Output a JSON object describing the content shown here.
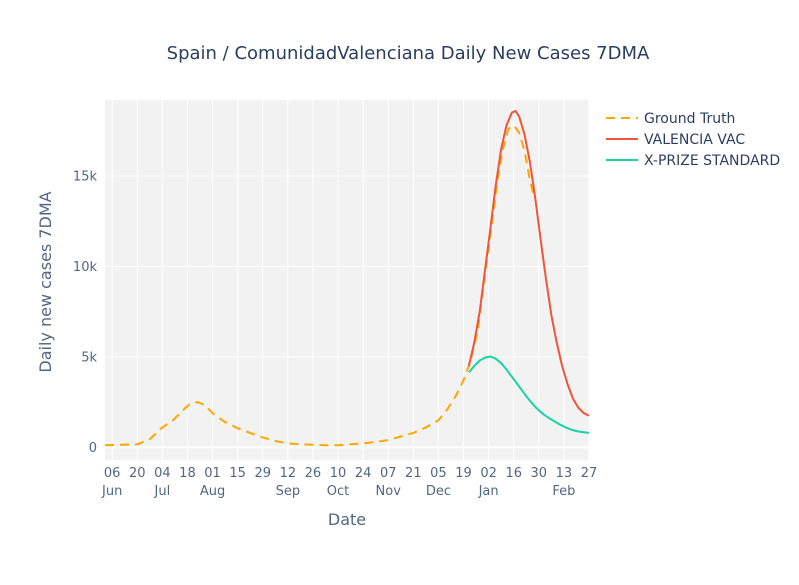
{
  "chart_data": {
    "type": "line",
    "title": "Spain / ComunidadValenciana Daily New Cases 7DMA",
    "xlabel": "Date",
    "ylabel": "Daily new cases 7DMA",
    "x_range": [
      "2020-06-02",
      "2021-02-27"
    ],
    "ylim": [
      -700,
      19200
    ],
    "grid": true,
    "legend_position": "top-right",
    "x_ticks": [
      {
        "date": "2020-06-06",
        "day": "06",
        "month": "Jun"
      },
      {
        "date": "2020-06-20",
        "day": "20",
        "month": ""
      },
      {
        "date": "2020-07-04",
        "day": "04",
        "month": "Jul"
      },
      {
        "date": "2020-07-18",
        "day": "18",
        "month": ""
      },
      {
        "date": "2020-08-01",
        "day": "01",
        "month": "Aug"
      },
      {
        "date": "2020-08-15",
        "day": "15",
        "month": ""
      },
      {
        "date": "2020-08-29",
        "day": "29",
        "month": ""
      },
      {
        "date": "2020-09-12",
        "day": "12",
        "month": "Sep"
      },
      {
        "date": "2020-09-26",
        "day": "26",
        "month": ""
      },
      {
        "date": "2020-10-10",
        "day": "10",
        "month": "Oct"
      },
      {
        "date": "2020-10-24",
        "day": "24",
        "month": ""
      },
      {
        "date": "2020-11-07",
        "day": "07",
        "month": "Nov"
      },
      {
        "date": "2020-11-21",
        "day": "21",
        "month": ""
      },
      {
        "date": "2020-12-05",
        "day": "05",
        "month": "Dec"
      },
      {
        "date": "2020-12-19",
        "day": "19",
        "month": ""
      },
      {
        "date": "2021-01-02",
        "day": "02",
        "month": "Jan"
      },
      {
        "date": "2021-01-16",
        "day": "16",
        "month": ""
      },
      {
        "date": "2021-01-30",
        "day": "30",
        "month": ""
      },
      {
        "date": "2021-02-13",
        "day": "13",
        "month": "Feb"
      },
      {
        "date": "2021-02-27",
        "day": "27",
        "month": ""
      }
    ],
    "y_ticks": [
      {
        "value": 0,
        "label": "0"
      },
      {
        "value": 5000,
        "label": "5k"
      },
      {
        "value": 10000,
        "label": "10k"
      },
      {
        "value": 15000,
        "label": "15k"
      }
    ],
    "series": [
      {
        "name": "Ground Truth",
        "color": "#FFA500",
        "dash": "dashed",
        "points": [
          [
            "2020-06-02",
            120
          ],
          [
            "2020-06-10",
            140
          ],
          [
            "2020-06-20",
            170
          ],
          [
            "2020-06-27",
            450
          ],
          [
            "2020-07-04",
            1100
          ],
          [
            "2020-07-10",
            1500
          ],
          [
            "2020-07-16",
            2100
          ],
          [
            "2020-07-20",
            2450
          ],
          [
            "2020-07-24",
            2500
          ],
          [
            "2020-07-28",
            2300
          ],
          [
            "2020-08-02",
            1800
          ],
          [
            "2020-08-08",
            1400
          ],
          [
            "2020-08-15",
            1050
          ],
          [
            "2020-08-22",
            800
          ],
          [
            "2020-08-29",
            550
          ],
          [
            "2020-09-05",
            350
          ],
          [
            "2020-09-12",
            220
          ],
          [
            "2020-09-20",
            170
          ],
          [
            "2020-09-26",
            140
          ],
          [
            "2020-10-03",
            110
          ],
          [
            "2020-10-10",
            120
          ],
          [
            "2020-10-17",
            170
          ],
          [
            "2020-10-24",
            220
          ],
          [
            "2020-10-31",
            300
          ],
          [
            "2020-11-07",
            400
          ],
          [
            "2020-11-14",
            600
          ],
          [
            "2020-11-21",
            800
          ],
          [
            "2020-11-28",
            1100
          ],
          [
            "2020-12-05",
            1500
          ],
          [
            "2020-12-10",
            2100
          ],
          [
            "2020-12-15",
            2900
          ],
          [
            "2020-12-19",
            3700
          ],
          [
            "2020-12-23",
            4800
          ],
          [
            "2020-12-27",
            6500
          ],
          [
            "2020-12-30",
            8800
          ],
          [
            "2021-01-02",
            11000
          ],
          [
            "2021-01-04",
            12500
          ],
          [
            "2021-01-07",
            14800
          ],
          [
            "2021-01-10",
            16500
          ],
          [
            "2021-01-13",
            17600
          ],
          [
            "2021-01-16",
            17800
          ],
          [
            "2021-01-19",
            17400
          ],
          [
            "2021-01-22",
            16400
          ],
          [
            "2021-01-25",
            14800
          ],
          [
            "2021-01-27",
            14000
          ]
        ]
      },
      {
        "name": "VALENCIA VAC",
        "color": "#EF553B",
        "dash": "solid",
        "points": [
          [
            "2020-12-22",
            4500
          ],
          [
            "2020-12-25",
            5800
          ],
          [
            "2020-12-28",
            7500
          ],
          [
            "2020-12-31",
            9800
          ],
          [
            "2021-01-03",
            12100
          ],
          [
            "2021-01-06",
            14500
          ],
          [
            "2021-01-09",
            16500
          ],
          [
            "2021-01-12",
            17800
          ],
          [
            "2021-01-15",
            18500
          ],
          [
            "2021-01-17",
            18600
          ],
          [
            "2021-01-19",
            18300
          ],
          [
            "2021-01-22",
            17300
          ],
          [
            "2021-01-25",
            15800
          ],
          [
            "2021-01-28",
            13800
          ],
          [
            "2021-01-31",
            11500
          ],
          [
            "2021-02-03",
            9300
          ],
          [
            "2021-02-06",
            7300
          ],
          [
            "2021-02-09",
            5800
          ],
          [
            "2021-02-12",
            4500
          ],
          [
            "2021-02-15",
            3500
          ],
          [
            "2021-02-18",
            2700
          ],
          [
            "2021-02-21",
            2200
          ],
          [
            "2021-02-24",
            1900
          ],
          [
            "2021-02-27",
            1750
          ]
        ]
      },
      {
        "name": "X-PRIZE STANDARD",
        "color": "#19D3A2",
        "dash": "solid",
        "points": [
          [
            "2020-12-22",
            4150
          ],
          [
            "2020-12-25",
            4500
          ],
          [
            "2020-12-28",
            4800
          ],
          [
            "2020-12-31",
            4960
          ],
          [
            "2021-01-03",
            5020
          ],
          [
            "2021-01-06",
            4900
          ],
          [
            "2021-01-09",
            4650
          ],
          [
            "2021-01-12",
            4300
          ],
          [
            "2021-01-15",
            3900
          ],
          [
            "2021-01-18",
            3500
          ],
          [
            "2021-01-21",
            3100
          ],
          [
            "2021-01-24",
            2700
          ],
          [
            "2021-01-27",
            2350
          ],
          [
            "2021-01-30",
            2050
          ],
          [
            "2021-02-02",
            1800
          ],
          [
            "2021-02-05",
            1600
          ],
          [
            "2021-02-08",
            1420
          ],
          [
            "2021-02-11",
            1250
          ],
          [
            "2021-02-14",
            1100
          ],
          [
            "2021-02-17",
            980
          ],
          [
            "2021-02-20",
            900
          ],
          [
            "2021-02-23",
            850
          ],
          [
            "2021-02-27",
            800
          ]
        ]
      }
    ]
  }
}
